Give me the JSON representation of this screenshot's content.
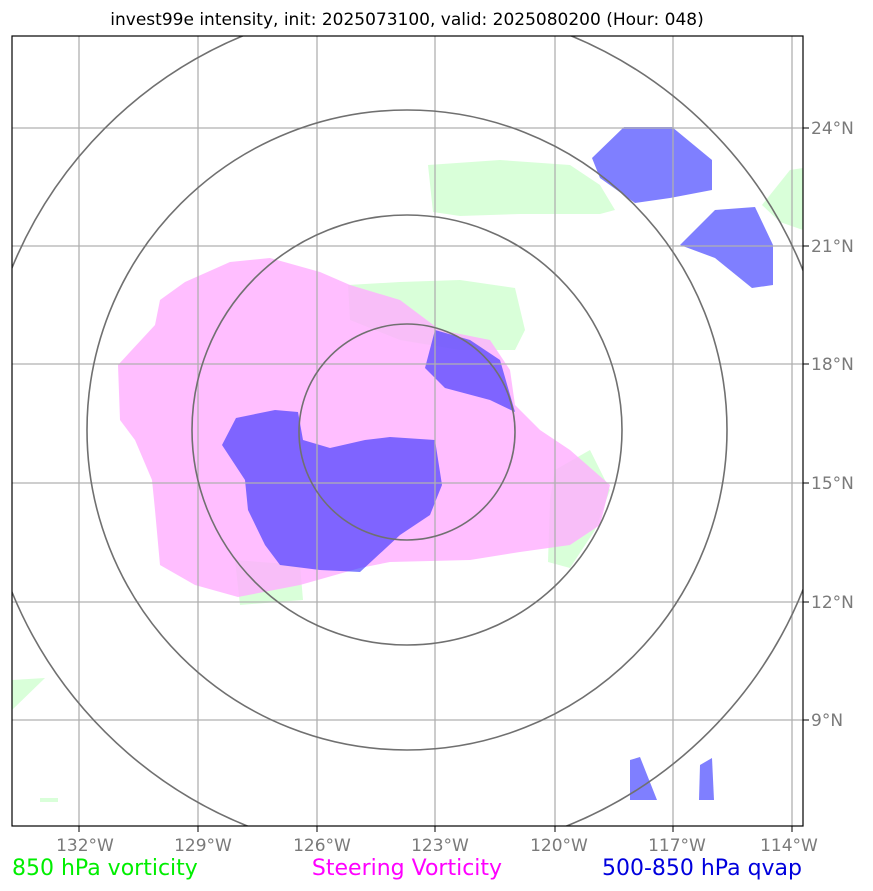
{
  "title": "invest99e intensity, init: 2025073100, valid: 2025080200 (Hour: 048)",
  "longitude_ticks": [
    "132°W",
    "129°W",
    "126°W",
    "123°W",
    "120°W",
    "117°W",
    "114°W"
  ],
  "latitude_ticks": [
    "24°N",
    "21°N",
    "18°N",
    "15°N",
    "12°N",
    "9°N"
  ],
  "legend": [
    {
      "label": "850 hPa vorticity",
      "color": "#00ee00"
    },
    {
      "label": "Steering Vorticity",
      "color": "#ff00ff"
    },
    {
      "label": "500-850 hPa qvap",
      "color": "#0000dd"
    }
  ],
  "layer_colors": {
    "vorticity_850": "#ccffcc",
    "steering": "#ffb0ff",
    "qvap": "#3333ff",
    "rings": "#707070",
    "grid": "#b0b0b0"
  }
}
